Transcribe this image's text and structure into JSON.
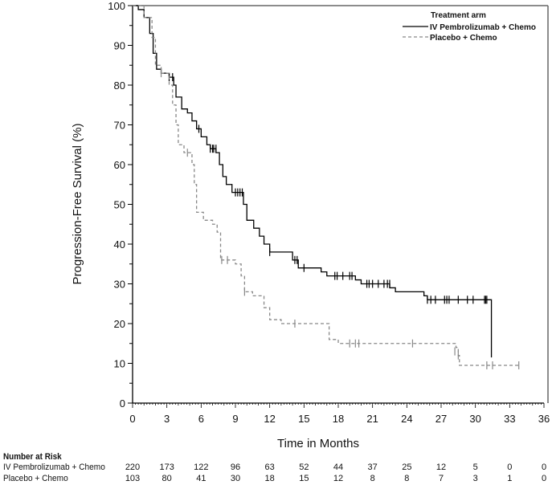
{
  "chart_data": {
    "type": "line",
    "subtype": "kaplan-meier",
    "title": "",
    "xlabel": "Time in Months",
    "ylabel": "Progression-Free Survival (%)",
    "xlim": [
      0,
      36
    ],
    "ylim": [
      0,
      100
    ],
    "x_ticks": [
      0,
      3,
      6,
      9,
      12,
      15,
      18,
      21,
      24,
      27,
      30,
      33,
      36
    ],
    "y_ticks": [
      0,
      10,
      20,
      30,
      40,
      50,
      60,
      70,
      80,
      90,
      100
    ],
    "grid": false,
    "legend": {
      "title": "Treatment arm",
      "placement": "top-right",
      "entries": [
        "IV Pembrolizumab + Chemo",
        "Placebo + Chemo"
      ]
    },
    "series": [
      {
        "name": "IV Pembrolizumab + Chemo",
        "style": "solid",
        "color": "#000000",
        "steps": [
          [
            0,
            100
          ],
          [
            0.5,
            99
          ],
          [
            1.0,
            97
          ],
          [
            1.5,
            93
          ],
          [
            1.8,
            88
          ],
          [
            2.1,
            84
          ],
          [
            2.5,
            83
          ],
          [
            3.2,
            82
          ],
          [
            3.6,
            80
          ],
          [
            3.8,
            77
          ],
          [
            4.3,
            74
          ],
          [
            4.8,
            73
          ],
          [
            5.2,
            71
          ],
          [
            5.6,
            69
          ],
          [
            6.0,
            67
          ],
          [
            6.5,
            65
          ],
          [
            6.8,
            64
          ],
          [
            7.3,
            63
          ],
          [
            7.6,
            60
          ],
          [
            7.9,
            57
          ],
          [
            8.2,
            55
          ],
          [
            8.7,
            53
          ],
          [
            9.7,
            50
          ],
          [
            10.0,
            46
          ],
          [
            10.6,
            44
          ],
          [
            11.1,
            42
          ],
          [
            11.5,
            40
          ],
          [
            12.0,
            38
          ],
          [
            14.0,
            36
          ],
          [
            14.5,
            34
          ],
          [
            16.5,
            33
          ],
          [
            17.0,
            32
          ],
          [
            19.5,
            31
          ],
          [
            20.0,
            30
          ],
          [
            22.5,
            29
          ],
          [
            23.0,
            28
          ],
          [
            25.5,
            27
          ],
          [
            25.8,
            26
          ],
          [
            31.4,
            11.5
          ]
        ],
        "end_time": 31.4,
        "censors": [
          [
            3.2,
            82
          ],
          [
            3.5,
            82
          ],
          [
            5.8,
            69
          ],
          [
            6.8,
            64
          ],
          [
            7.0,
            64
          ],
          [
            7.1,
            64
          ],
          [
            7.3,
            64
          ],
          [
            9.0,
            53
          ],
          [
            9.2,
            53
          ],
          [
            9.4,
            53
          ],
          [
            9.6,
            53
          ],
          [
            12.0,
            38
          ],
          [
            14.2,
            36
          ],
          [
            14.4,
            36
          ],
          [
            15.0,
            34
          ],
          [
            17.7,
            32
          ],
          [
            17.9,
            32
          ],
          [
            18.4,
            32
          ],
          [
            19.0,
            32
          ],
          [
            19.2,
            32
          ],
          [
            20.5,
            30
          ],
          [
            20.7,
            30
          ],
          [
            21.0,
            30
          ],
          [
            21.5,
            30
          ],
          [
            22.0,
            30
          ],
          [
            22.3,
            30
          ],
          [
            22.5,
            30
          ],
          [
            25.8,
            26
          ],
          [
            26.1,
            26
          ],
          [
            26.5,
            26
          ],
          [
            27.3,
            26
          ],
          [
            27.5,
            26
          ],
          [
            27.7,
            26
          ],
          [
            28.5,
            26
          ],
          [
            29.3,
            26
          ],
          [
            29.8,
            26
          ],
          [
            30.8,
            26
          ],
          [
            30.9,
            26
          ],
          [
            31.0,
            26
          ]
        ]
      },
      {
        "name": "Placebo + Chemo",
        "style": "dashed",
        "color": "#888888",
        "steps": [
          [
            0,
            100
          ],
          [
            1.0,
            97
          ],
          [
            1.7,
            92
          ],
          [
            2.0,
            85
          ],
          [
            2.5,
            83
          ],
          [
            3.2,
            80
          ],
          [
            3.5,
            75
          ],
          [
            3.8,
            70
          ],
          [
            4.0,
            65
          ],
          [
            4.5,
            63
          ],
          [
            5.2,
            60
          ],
          [
            5.4,
            55
          ],
          [
            5.6,
            48
          ],
          [
            6.2,
            46
          ],
          [
            7.0,
            45
          ],
          [
            7.4,
            43
          ],
          [
            7.7,
            36
          ],
          [
            9.0,
            35
          ],
          [
            9.5,
            32
          ],
          [
            9.8,
            28
          ],
          [
            10.5,
            27
          ],
          [
            11.5,
            24
          ],
          [
            12.0,
            21
          ],
          [
            13.0,
            20
          ],
          [
            17.2,
            16
          ],
          [
            18.0,
            15
          ],
          [
            28.3,
            14
          ],
          [
            28.5,
            12
          ],
          [
            28.6,
            9.5
          ]
        ],
        "end_time": 33.8,
        "censors": [
          [
            2.5,
            83
          ],
          [
            4.8,
            63
          ],
          [
            7.8,
            36
          ],
          [
            8.3,
            36
          ],
          [
            9.8,
            28
          ],
          [
            14.2,
            20
          ],
          [
            19.0,
            15
          ],
          [
            19.5,
            15
          ],
          [
            19.8,
            15
          ],
          [
            24.5,
            15
          ],
          [
            28.2,
            13
          ],
          [
            28.5,
            12
          ],
          [
            31.0,
            9.5
          ],
          [
            31.5,
            9.5
          ],
          [
            33.8,
            9.5
          ]
        ]
      }
    ],
    "number_at_risk": {
      "title": "Number at Risk",
      "times": [
        0,
        3,
        6,
        9,
        12,
        15,
        18,
        21,
        24,
        27,
        30,
        33,
        36
      ],
      "rows": [
        {
          "label": "IV Pembrolizumab + Chemo",
          "values": [
            "220",
            "173",
            "122",
            "96",
            "63",
            "52",
            "44",
            "37",
            "25",
            "12",
            "5",
            "0",
            "0"
          ]
        },
        {
          "label": "Placebo + Chemo",
          "values": [
            "103",
            "80",
            "41",
            "30",
            "18",
            "15",
            "12",
            "8",
            "8",
            "7",
            "3",
            "1",
            "0"
          ]
        }
      ]
    }
  }
}
